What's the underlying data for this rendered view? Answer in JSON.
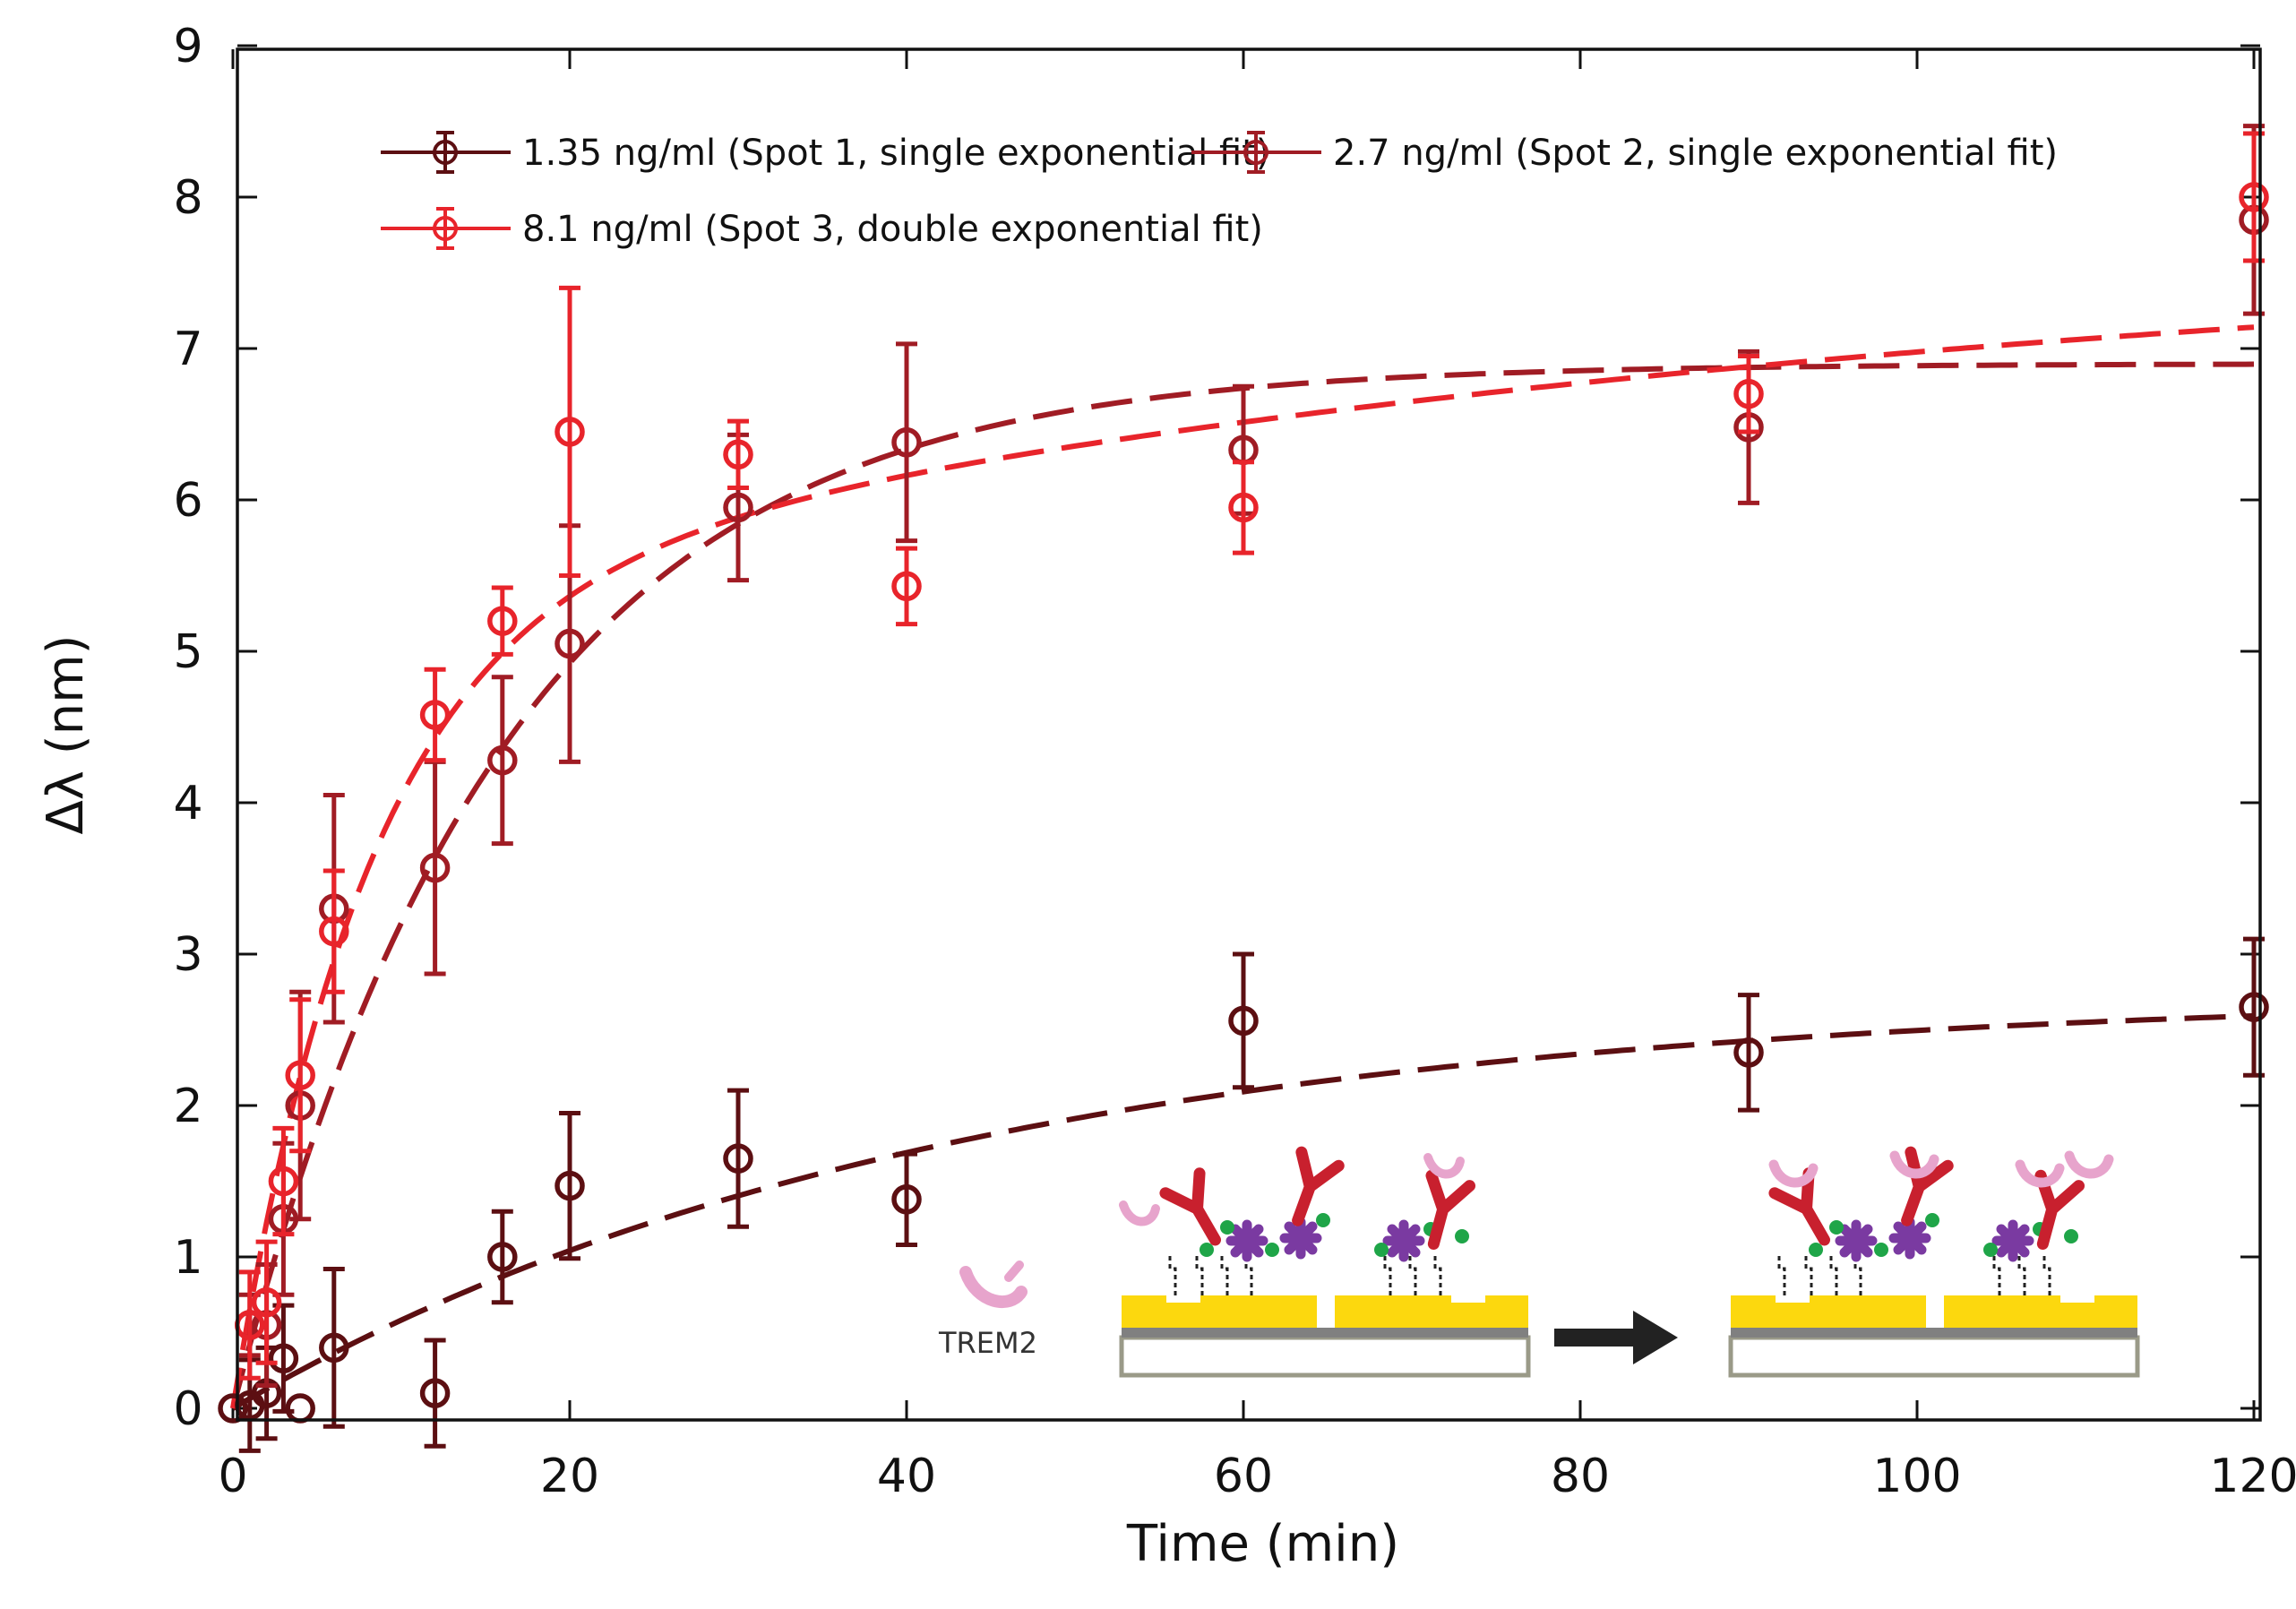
{
  "chart_data": {
    "type": "scatter",
    "title": "",
    "xlabel": "Time (min)",
    "ylabel": "Δλ (nm)",
    "xlim": [
      0,
      122
    ],
    "ylim": [
      -0.1,
      9
    ],
    "xticks": [
      0,
      20,
      40,
      60,
      80,
      100,
      120
    ],
    "yticks": [
      0,
      1,
      2,
      3,
      4,
      5,
      6,
      7,
      8,
      9
    ],
    "legend_position": "top",
    "series": [
      {
        "name": "1.35 ng/ml (Spot 1, single exponential fit)",
        "color": "#5c0f12",
        "x": [
          0,
          1,
          2,
          3,
          4,
          6,
          12,
          16,
          20,
          30,
          40,
          60,
          90,
          120
        ],
        "y": [
          0,
          0.02,
          0.1,
          0.33,
          0,
          0.4,
          0.1,
          1.0,
          1.47,
          1.65,
          1.38,
          2.56,
          2.35,
          2.65
        ],
        "err": [
          0,
          0.3,
          0.3,
          0.35,
          0.0,
          0.52,
          0.35,
          0.3,
          0.48,
          0.45,
          0.3,
          0.44,
          0.38,
          0.45
        ],
        "fit": {
          "model": "single",
          "A": 2.75,
          "tau": 42
        }
      },
      {
        "name": "2.7 ng/ml (Spot 2, single exponential fit)",
        "color": "#a01c24",
        "x": [
          1,
          2,
          3,
          4,
          6,
          12,
          16,
          20,
          30,
          40,
          60,
          90,
          120
        ],
        "y": [
          0.55,
          0.55,
          1.25,
          2.0,
          3.3,
          3.57,
          4.28,
          5.05,
          5.95,
          6.38,
          6.33,
          6.48,
          7.85
        ],
        "err": [
          0.2,
          0.4,
          0.5,
          0.75,
          0.75,
          0.7,
          0.55,
          0.78,
          0.48,
          0.65,
          0.42,
          0.5,
          0.62
        ],
        "fit": {
          "model": "single",
          "A": 6.9,
          "tau": 16
        }
      },
      {
        "name": "8.1 ng/ml (Spot 3, double exponential fit)",
        "color": "#e8242b",
        "x": [
          1,
          2,
          3,
          4,
          6,
          12,
          16,
          20,
          30,
          40,
          60,
          90,
          120
        ],
        "y": [
          0.55,
          0.7,
          1.5,
          2.2,
          3.15,
          4.58,
          5.2,
          6.45,
          6.3,
          5.43,
          5.95,
          6.7,
          8.0
        ],
        "err": [
          0.35,
          0.4,
          0.35,
          0.5,
          0.4,
          0.3,
          0.22,
          0.95,
          0.22,
          0.25,
          0.3,
          0.25,
          0.42
        ],
        "fit": {
          "model": "double",
          "A1": 5.3,
          "tau1": 8,
          "A2": 2.5,
          "tau2": 90
        }
      }
    ]
  },
  "inset": {
    "label": "TREM2",
    "colors": {
      "gold": "#fcd80e",
      "antibody": "#c8202e",
      "trem2": "#e7a4cc",
      "molecule": "#7a3aa1",
      "dot": "#1fa548",
      "substrate": "#9a9a88",
      "layer": "#808080",
      "arrow": "#222222"
    }
  }
}
